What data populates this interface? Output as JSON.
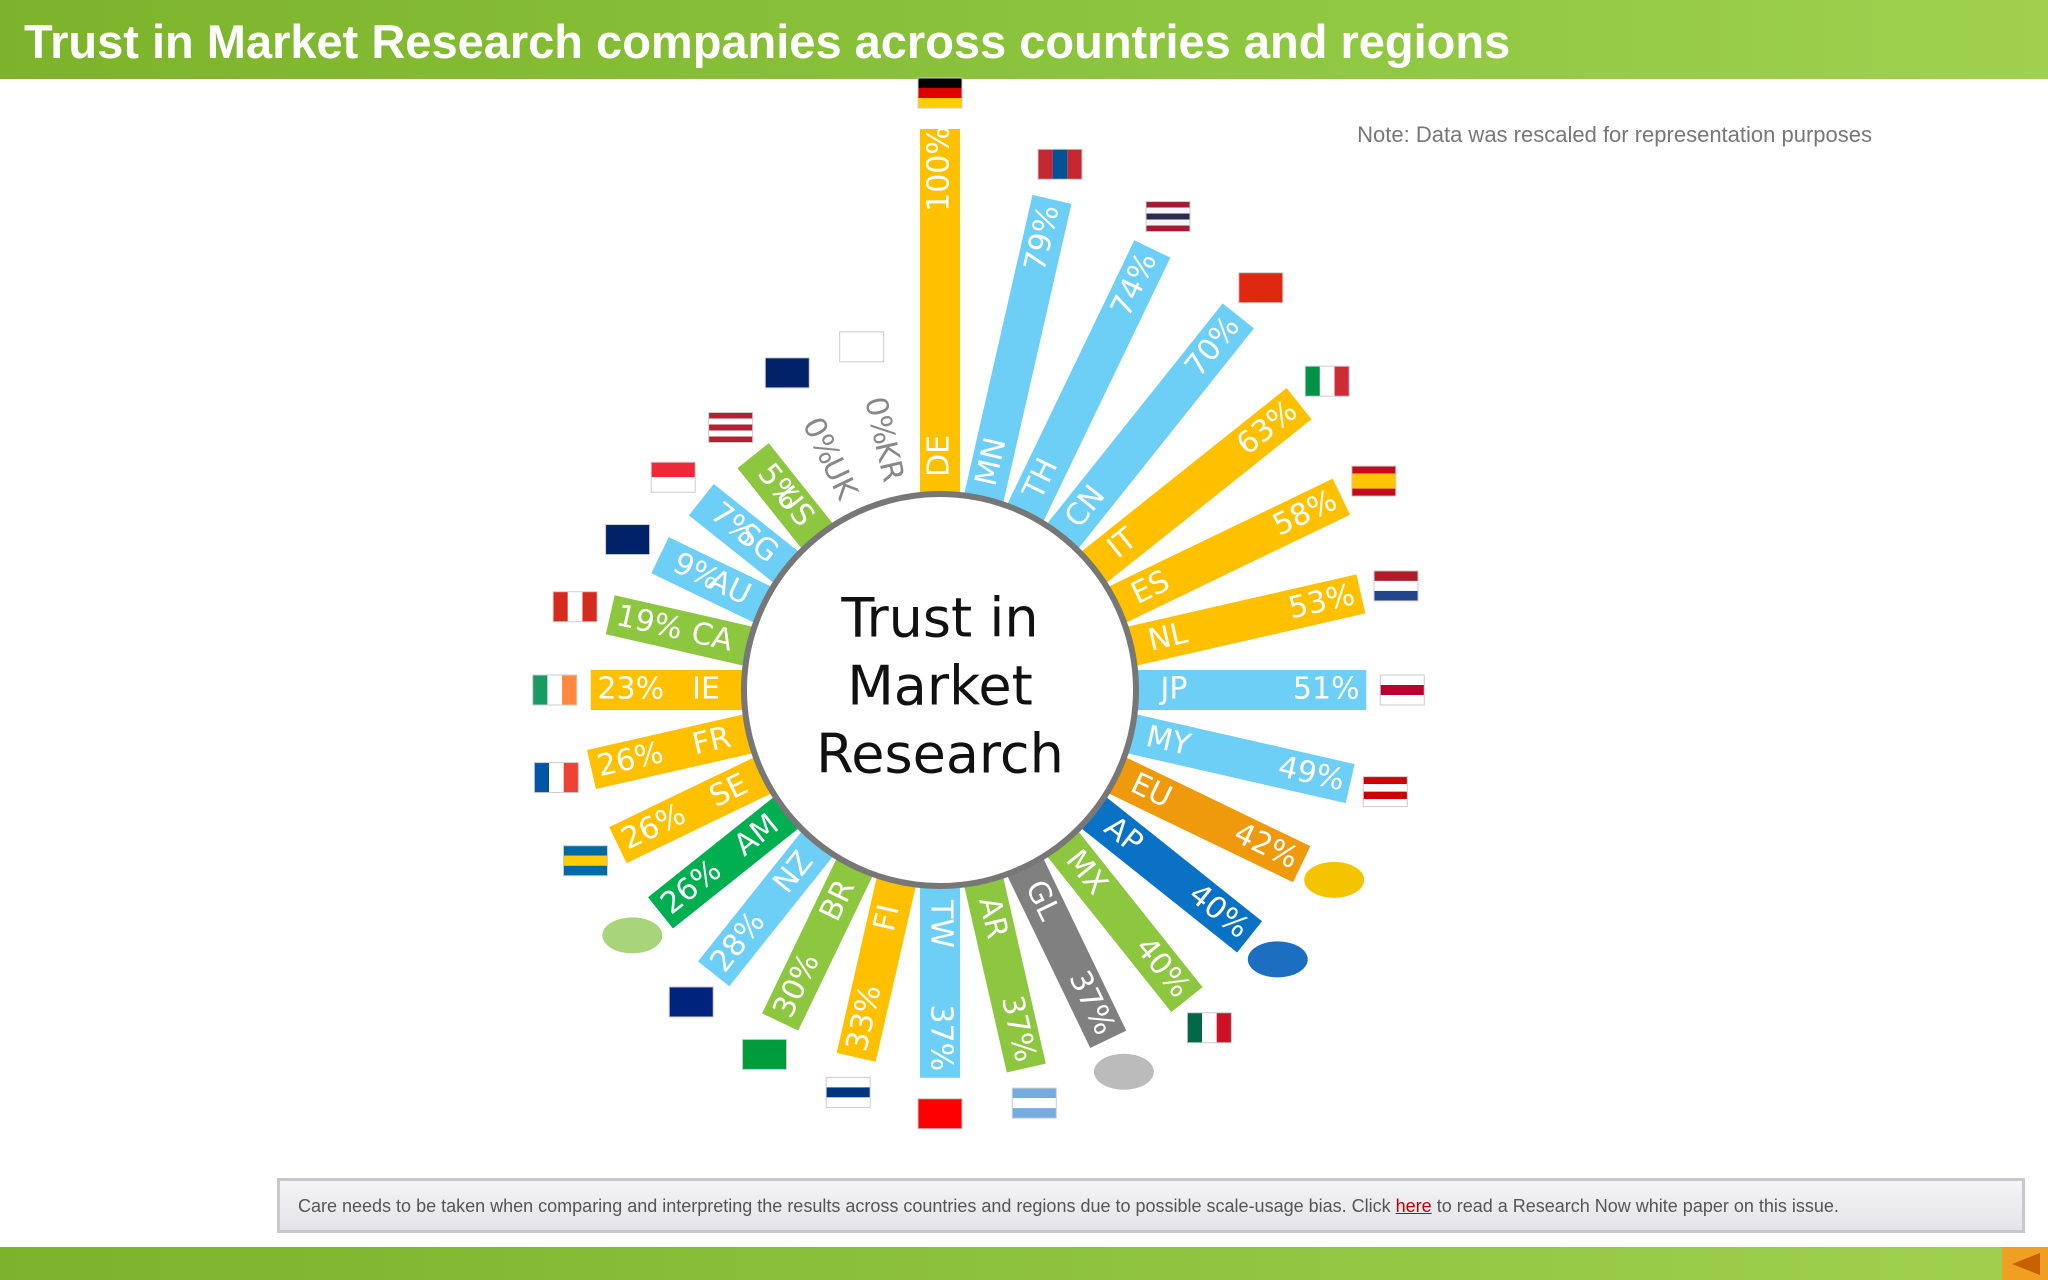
{
  "header": {
    "title": "Trust in Market Research companies across countries and regions"
  },
  "note": "Note: Data was rescaled for representation purposes",
  "chart_data": {
    "type": "radial-bar",
    "center_label": [
      "Trust in",
      "Market",
      "Research"
    ],
    "categories": [
      "DE",
      "MN",
      "TH",
      "CN",
      "IT",
      "ES",
      "NL",
      "JP",
      "MY",
      "EU",
      "AP",
      "MX",
      "GL",
      "AR",
      "TW",
      "FI",
      "BR",
      "NZ",
      "AM",
      "SE",
      "FR",
      "IE",
      "CA",
      "AU",
      "SG",
      "US",
      "UK",
      "KR"
    ],
    "values": [
      100,
      79,
      74,
      70,
      63,
      58,
      53,
      51,
      49,
      42,
      40,
      40,
      37,
      37,
      37,
      33,
      30,
      28,
      26,
      26,
      26,
      23,
      19,
      9,
      7,
      5,
      0,
      0
    ],
    "value_labels": [
      "100%",
      "79%",
      "74%",
      "70%",
      "63%",
      "58%",
      "53%",
      "51%",
      "49%",
      "42%",
      "40%",
      "40%",
      "37%",
      "37%",
      "37%",
      "33%",
      "30%",
      "28%",
      "26%",
      "26%",
      "26%",
      "23%",
      "19%",
      "9%",
      "7%",
      "5%",
      "0%",
      "0%"
    ],
    "colors": [
      "#ffc000",
      "#6dcff6",
      "#6dcff6",
      "#6dcff6",
      "#ffc000",
      "#ffc000",
      "#ffc000",
      "#6dcff6",
      "#6dcff6",
      "#ef9a0c",
      "#0a72c4",
      "#8dc63f",
      "#808080",
      "#8dc63f",
      "#6dcff6",
      "#ffc000",
      "#8dc63f",
      "#6dcff6",
      "#00b050",
      "#ffc000",
      "#ffc000",
      "#ffc000",
      "#8dc63f",
      "#6dcff6",
      "#6dcff6",
      "#8dc63f",
      "#8dc63f",
      "#8dc63f"
    ]
  },
  "footer": {
    "text_before": "Care needs to be taken when comparing and interpreting the results across countries and regions due to possible scale-usage bias. Click",
    "link": "here",
    "text_after": "to read a Research Now white paper on this issue."
  }
}
